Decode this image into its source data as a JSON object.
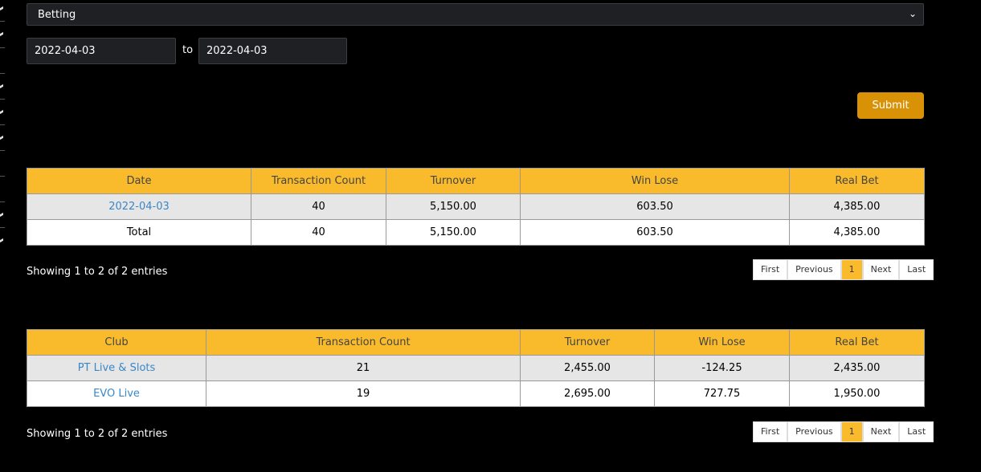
{
  "filter": {
    "type_selected": "Betting",
    "date_from": "2022-04-03",
    "to_label": "to",
    "date_to": "2022-04-03",
    "submit_label": "Submit"
  },
  "summary_table": {
    "headers": [
      "Date",
      "Transaction Count",
      "Turnover",
      "Win Lose",
      "Real Bet"
    ],
    "rows": [
      [
        "2022-04-03",
        "40",
        "5,150.00",
        "603.50",
        "4,385.00"
      ],
      [
        "Total",
        "40",
        "5,150.00",
        "603.50",
        "4,385.00"
      ]
    ],
    "info": "Showing 1 to 2 of 2 entries"
  },
  "club_table": {
    "headers": [
      "Club",
      "Transaction Count",
      "Turnover",
      "Win Lose",
      "Real Bet"
    ],
    "rows": [
      [
        "PT Live & Slots",
        "21",
        "2,455.00",
        "-124.25",
        "2,435.00"
      ],
      [
        "EVO Live",
        "19",
        "2,695.00",
        "727.75",
        "1,950.00"
      ]
    ],
    "info": "Showing 1 to 2 of 2 entries"
  },
  "pagination": {
    "first": "First",
    "previous": "Previous",
    "current": "1",
    "next": "Next",
    "last": "Last"
  },
  "colors": {
    "header": "#f9bb2c",
    "submit": "#d99106",
    "link": "#3a87c8"
  }
}
